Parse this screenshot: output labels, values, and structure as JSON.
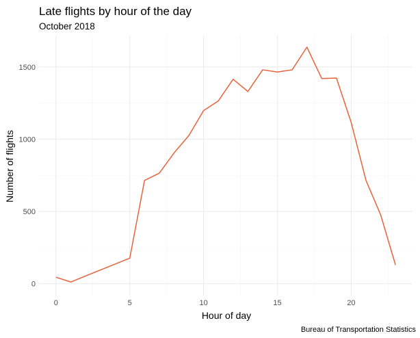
{
  "chart_data": {
    "type": "line",
    "title": "Late flights by hour of the day",
    "subtitle": "October 2018",
    "xlabel": "Hour of day",
    "ylabel": "Number of flights",
    "caption": "Bureau of Transportation Statistics",
    "x": [
      0,
      1,
      5,
      6,
      7,
      8,
      9,
      10,
      11,
      12,
      13,
      14,
      15,
      16,
      17,
      18,
      19,
      20,
      21,
      22,
      23
    ],
    "series": [
      {
        "values": [
          45,
          12,
          177,
          715,
          765,
          905,
          1025,
          1198,
          1265,
          1415,
          1330,
          1480,
          1465,
          1480,
          1637,
          1420,
          1423,
          1115,
          715,
          475,
          130
        ],
        "color": "#e8623a"
      }
    ],
    "xticks": [
      0,
      5,
      10,
      15,
      20
    ],
    "yticks": [
      0,
      500,
      1000,
      1500
    ],
    "xlim": [
      -1.15,
      24.15
    ],
    "ylim": [
      -82,
      1717
    ],
    "grid": true
  }
}
